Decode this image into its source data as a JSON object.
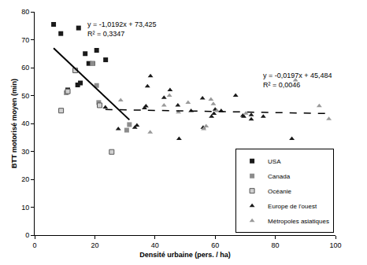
{
  "chart_data": {
    "type": "scatter",
    "x_label": "Densité urbaine (pers. / ha)",
    "y_label": "BTT motorisé moyen (min)",
    "xlim": [
      0,
      100
    ],
    "xticks": [
      0,
      20,
      40,
      60,
      80,
      100
    ],
    "ylim": [
      0,
      80
    ],
    "yticks": [
      0,
      10,
      20,
      30,
      40,
      50,
      60,
      70,
      80
    ],
    "grid": false,
    "legend": "bottom right",
    "series": [
      {
        "name": "USA",
        "color": "#1a1a1a",
        "marker": "square",
        "x": [
          6.3,
          8.7,
          14.6,
          11.0,
          14.3,
          15.2,
          16.8,
          18.0,
          19.3,
          20.6,
          23.6
        ],
        "values": [
          75.5,
          72.2,
          74.2,
          52.0,
          53.8,
          54.5,
          65.0,
          61.5,
          61.5,
          66.2,
          62.8
        ]
      },
      {
        "name": "Canada",
        "color": "#8c8c8c",
        "marker": "square",
        "x": [
          10.5,
          19.2,
          20.6,
          21.3,
          30.6,
          31.5
        ],
        "values": [
          51.0,
          61.4,
          53.6,
          47.5,
          37.6,
          39.6
        ]
      },
      {
        "name": "Océanie",
        "color": "#d0d0d0",
        "marker": "square-open-border",
        "x": [
          8.8,
          13.5,
          21.6,
          25.6,
          11.0
        ],
        "values": [
          44.6,
          59.0,
          46.5,
          29.8,
          51.5
        ]
      },
      {
        "name": "Europe de l'ouest",
        "color": "#1a1a1a",
        "marker": "triangle",
        "x": [
          23.5,
          27.8,
          33.3,
          34.0,
          36.5,
          37.0,
          37.5,
          38.5,
          43.0,
          45.0,
          47.6,
          48.0,
          52.0,
          55.8,
          56.0,
          58.8,
          59.6,
          60.0,
          62.0,
          66.8,
          69.2,
          69.5,
          72.0,
          72.0,
          76.0,
          85.5
        ],
        "values": [
          45.8,
          38.0,
          38.5,
          39.3,
          45.5,
          46.2,
          53.3,
          57.0,
          49.2,
          52.0,
          46.5,
          34.5,
          44.5,
          49.0,
          38.5,
          42.5,
          43.5,
          45.0,
          44.5,
          50.0,
          42.8,
          42.5,
          43.0,
          41.5,
          42.5,
          34.5
        ]
      },
      {
        "name": "Métropoles asiatiques",
        "color": "#9a9a9a",
        "marker": "triangle",
        "x": [
          28.6,
          38.4,
          43.0,
          44.8,
          47.8,
          51.0,
          56.2,
          57.0,
          58.6,
          59.4,
          60.6,
          70.2,
          86.7,
          94.6,
          97.8
        ],
        "values": [
          48.3,
          36.8,
          46.5,
          50.0,
          44.0,
          47.5,
          38.0,
          39.0,
          48.6,
          47.0,
          44.5,
          43.6,
          55.5,
          46.3,
          41.6
        ]
      }
    ],
    "trendlines": [
      {
        "x": [
          6.3,
          31.5
        ],
        "values": [
          67.0,
          41.3
        ],
        "color": "#000000",
        "line_style": "solid",
        "annotations": [
          "y = -1,0192x + 73,425",
          "R² = 0,3347"
        ]
      },
      {
        "x": [
          23.5,
          98.0
        ],
        "values": [
          45.0,
          43.55
        ],
        "color": "#000000",
        "line_style": "dash",
        "annotations": [
          "y = -0,0197x + 45,484",
          "R² = 0,0046"
        ]
      }
    ]
  }
}
